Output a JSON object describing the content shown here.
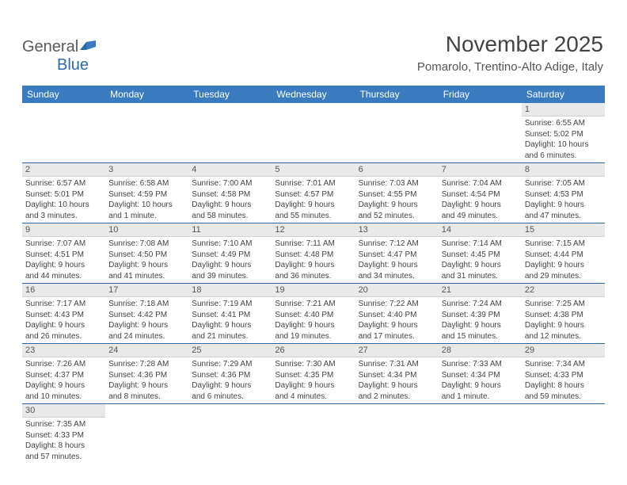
{
  "logo": {
    "part1": "General",
    "part2": "Blue"
  },
  "header": {
    "title": "November 2025",
    "subtitle": "Pomarolo, Trentino-Alto Adige, Italy"
  },
  "weekdays": [
    "Sunday",
    "Monday",
    "Tuesday",
    "Wednesday",
    "Thursday",
    "Friday",
    "Saturday"
  ],
  "colors": {
    "header_bg": "#3a7bbf",
    "header_text": "#ffffff",
    "daynum_bg": "#e9e9e9",
    "border": "#2f6aa8"
  },
  "weeks": [
    [
      null,
      null,
      null,
      null,
      null,
      null,
      {
        "n": "1",
        "sr": "Sunrise: 6:55 AM",
        "ss": "Sunset: 5:02 PM",
        "dl1": "Daylight: 10 hours",
        "dl2": "and 6 minutes."
      }
    ],
    [
      {
        "n": "2",
        "sr": "Sunrise: 6:57 AM",
        "ss": "Sunset: 5:01 PM",
        "dl1": "Daylight: 10 hours",
        "dl2": "and 3 minutes."
      },
      {
        "n": "3",
        "sr": "Sunrise: 6:58 AM",
        "ss": "Sunset: 4:59 PM",
        "dl1": "Daylight: 10 hours",
        "dl2": "and 1 minute."
      },
      {
        "n": "4",
        "sr": "Sunrise: 7:00 AM",
        "ss": "Sunset: 4:58 PM",
        "dl1": "Daylight: 9 hours",
        "dl2": "and 58 minutes."
      },
      {
        "n": "5",
        "sr": "Sunrise: 7:01 AM",
        "ss": "Sunset: 4:57 PM",
        "dl1": "Daylight: 9 hours",
        "dl2": "and 55 minutes."
      },
      {
        "n": "6",
        "sr": "Sunrise: 7:03 AM",
        "ss": "Sunset: 4:55 PM",
        "dl1": "Daylight: 9 hours",
        "dl2": "and 52 minutes."
      },
      {
        "n": "7",
        "sr": "Sunrise: 7:04 AM",
        "ss": "Sunset: 4:54 PM",
        "dl1": "Daylight: 9 hours",
        "dl2": "and 49 minutes."
      },
      {
        "n": "8",
        "sr": "Sunrise: 7:05 AM",
        "ss": "Sunset: 4:53 PM",
        "dl1": "Daylight: 9 hours",
        "dl2": "and 47 minutes."
      }
    ],
    [
      {
        "n": "9",
        "sr": "Sunrise: 7:07 AM",
        "ss": "Sunset: 4:51 PM",
        "dl1": "Daylight: 9 hours",
        "dl2": "and 44 minutes."
      },
      {
        "n": "10",
        "sr": "Sunrise: 7:08 AM",
        "ss": "Sunset: 4:50 PM",
        "dl1": "Daylight: 9 hours",
        "dl2": "and 41 minutes."
      },
      {
        "n": "11",
        "sr": "Sunrise: 7:10 AM",
        "ss": "Sunset: 4:49 PM",
        "dl1": "Daylight: 9 hours",
        "dl2": "and 39 minutes."
      },
      {
        "n": "12",
        "sr": "Sunrise: 7:11 AM",
        "ss": "Sunset: 4:48 PM",
        "dl1": "Daylight: 9 hours",
        "dl2": "and 36 minutes."
      },
      {
        "n": "13",
        "sr": "Sunrise: 7:12 AM",
        "ss": "Sunset: 4:47 PM",
        "dl1": "Daylight: 9 hours",
        "dl2": "and 34 minutes."
      },
      {
        "n": "14",
        "sr": "Sunrise: 7:14 AM",
        "ss": "Sunset: 4:45 PM",
        "dl1": "Daylight: 9 hours",
        "dl2": "and 31 minutes."
      },
      {
        "n": "15",
        "sr": "Sunrise: 7:15 AM",
        "ss": "Sunset: 4:44 PM",
        "dl1": "Daylight: 9 hours",
        "dl2": "and 29 minutes."
      }
    ],
    [
      {
        "n": "16",
        "sr": "Sunrise: 7:17 AM",
        "ss": "Sunset: 4:43 PM",
        "dl1": "Daylight: 9 hours",
        "dl2": "and 26 minutes."
      },
      {
        "n": "17",
        "sr": "Sunrise: 7:18 AM",
        "ss": "Sunset: 4:42 PM",
        "dl1": "Daylight: 9 hours",
        "dl2": "and 24 minutes."
      },
      {
        "n": "18",
        "sr": "Sunrise: 7:19 AM",
        "ss": "Sunset: 4:41 PM",
        "dl1": "Daylight: 9 hours",
        "dl2": "and 21 minutes."
      },
      {
        "n": "19",
        "sr": "Sunrise: 7:21 AM",
        "ss": "Sunset: 4:40 PM",
        "dl1": "Daylight: 9 hours",
        "dl2": "and 19 minutes."
      },
      {
        "n": "20",
        "sr": "Sunrise: 7:22 AM",
        "ss": "Sunset: 4:40 PM",
        "dl1": "Daylight: 9 hours",
        "dl2": "and 17 minutes."
      },
      {
        "n": "21",
        "sr": "Sunrise: 7:24 AM",
        "ss": "Sunset: 4:39 PM",
        "dl1": "Daylight: 9 hours",
        "dl2": "and 15 minutes."
      },
      {
        "n": "22",
        "sr": "Sunrise: 7:25 AM",
        "ss": "Sunset: 4:38 PM",
        "dl1": "Daylight: 9 hours",
        "dl2": "and 12 minutes."
      }
    ],
    [
      {
        "n": "23",
        "sr": "Sunrise: 7:26 AM",
        "ss": "Sunset: 4:37 PM",
        "dl1": "Daylight: 9 hours",
        "dl2": "and 10 minutes."
      },
      {
        "n": "24",
        "sr": "Sunrise: 7:28 AM",
        "ss": "Sunset: 4:36 PM",
        "dl1": "Daylight: 9 hours",
        "dl2": "and 8 minutes."
      },
      {
        "n": "25",
        "sr": "Sunrise: 7:29 AM",
        "ss": "Sunset: 4:36 PM",
        "dl1": "Daylight: 9 hours",
        "dl2": "and 6 minutes."
      },
      {
        "n": "26",
        "sr": "Sunrise: 7:30 AM",
        "ss": "Sunset: 4:35 PM",
        "dl1": "Daylight: 9 hours",
        "dl2": "and 4 minutes."
      },
      {
        "n": "27",
        "sr": "Sunrise: 7:31 AM",
        "ss": "Sunset: 4:34 PM",
        "dl1": "Daylight: 9 hours",
        "dl2": "and 2 minutes."
      },
      {
        "n": "28",
        "sr": "Sunrise: 7:33 AM",
        "ss": "Sunset: 4:34 PM",
        "dl1": "Daylight: 9 hours",
        "dl2": "and 1 minute."
      },
      {
        "n": "29",
        "sr": "Sunrise: 7:34 AM",
        "ss": "Sunset: 4:33 PM",
        "dl1": "Daylight: 8 hours",
        "dl2": "and 59 minutes."
      }
    ],
    [
      {
        "n": "30",
        "sr": "Sunrise: 7:35 AM",
        "ss": "Sunset: 4:33 PM",
        "dl1": "Daylight: 8 hours",
        "dl2": "and 57 minutes."
      },
      null,
      null,
      null,
      null,
      null,
      null
    ]
  ]
}
